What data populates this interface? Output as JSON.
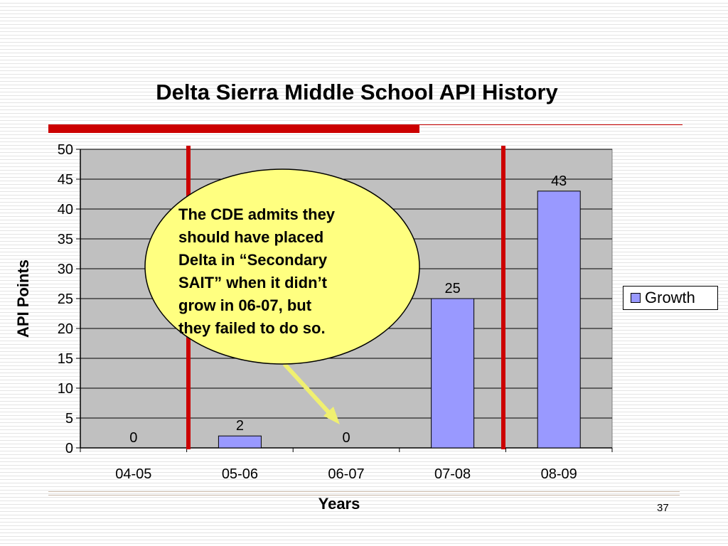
{
  "slide": {
    "page_number": "37",
    "callout_text": [
      "The CDE admits they",
      "should have placed",
      "Delta in “Secondary",
      "SAIT” when it didn’t",
      "grow in 06-07, but",
      "they failed to do so."
    ]
  },
  "chart_data": {
    "type": "bar",
    "title": "Delta Sierra Middle School API History",
    "xlabel": "Years",
    "ylabel": "API Points",
    "categories": [
      "04-05",
      "05-06",
      "06-07",
      "07-08",
      "08-09"
    ],
    "series": [
      {
        "name": "Growth",
        "values": [
          0,
          2,
          0,
          25,
          43
        ]
      }
    ],
    "data_labels": [
      "0",
      "2",
      "0",
      "25",
      "43"
    ],
    "ylim": [
      0,
      50
    ],
    "yticks": [
      0,
      5,
      10,
      15,
      20,
      25,
      30,
      35,
      40,
      45,
      50
    ],
    "grid": true,
    "legend_position": "right",
    "colors": {
      "bar_fill": "#9999ff",
      "plot_background": "#c0c0c0",
      "marker_lines": "#cc0000",
      "callout_fill": "#ffff80",
      "arrow": "#f0f070"
    }
  }
}
